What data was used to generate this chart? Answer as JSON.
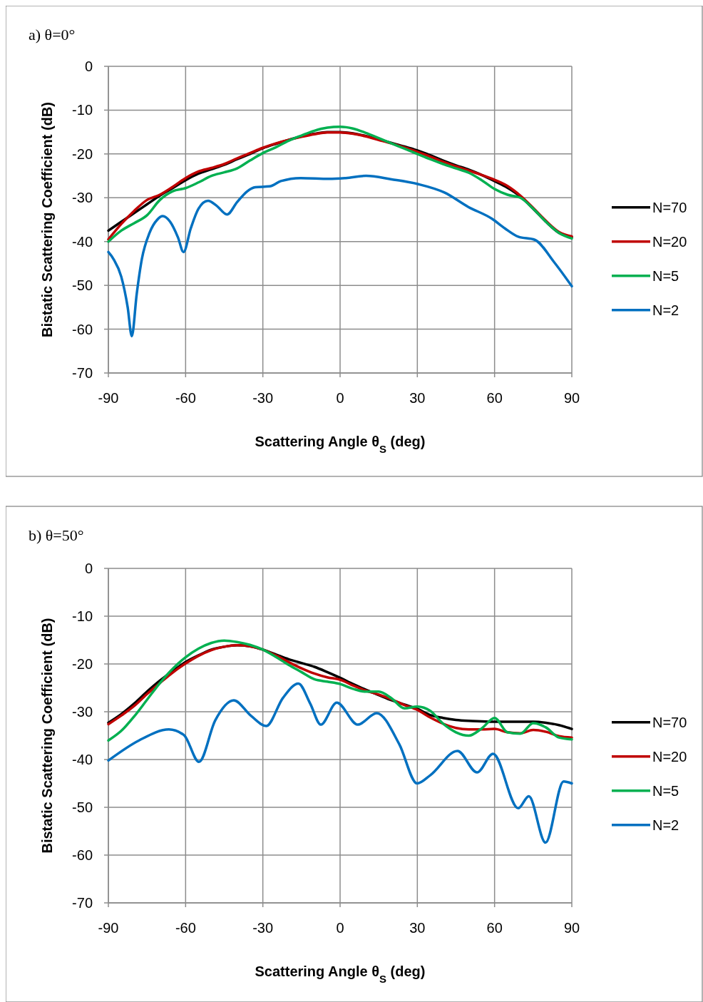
{
  "chart_data": [
    {
      "type": "line",
      "title": "a) θ=0°",
      "xlabel": "Scattering Angle θ$_{S}$ (deg)",
      "ylabel": "Bistatic Scattering Coefficient (dB)",
      "xlim": [
        -90,
        90
      ],
      "xticks": [
        -90,
        -60,
        -30,
        0,
        30,
        60,
        90
      ],
      "ylim": [
        -70,
        0
      ],
      "yticks": [
        -70,
        -60,
        -50,
        -40,
        -30,
        -20,
        -10,
        0
      ],
      "grid": true,
      "legend": "right",
      "marker": "none",
      "line_style": "solid",
      "x": [
        -90,
        -85,
        -80,
        -75,
        -70,
        -65,
        -60,
        -55,
        -50,
        -45,
        -40,
        -35,
        -30,
        -25,
        -20,
        -15,
        -10,
        -5,
        0,
        5,
        10,
        15,
        20,
        25,
        30,
        35,
        40,
        45,
        50,
        55,
        60,
        65,
        70,
        75,
        80,
        85,
        90
      ],
      "series": [
        {
          "name": "N=70",
          "color": "#000000",
          "values": [
            -37.5,
            -35.5,
            -33.5,
            -31.5,
            -29.5,
            -27.8,
            -26,
            -24.5,
            -23.5,
            -22.5,
            -21.2,
            -20,
            -18.7,
            -17.7,
            -16.8,
            -16,
            -15.4,
            -15,
            -15,
            -15.3,
            -15.9,
            -16.7,
            -17.5,
            -18.3,
            -19.2,
            -20.3,
            -21.5,
            -22.6,
            -23.6,
            -24.8,
            -26.2,
            -27.7,
            -29.7,
            -32.5,
            -35.5,
            -38,
            -39
          ]
        },
        {
          "name": "N=20",
          "color": "#c00000",
          "values": [
            -39.5,
            -36,
            -33,
            -30.5,
            -29.3,
            -27.5,
            -25.5,
            -24,
            -23.2,
            -22.3,
            -21,
            -19.8,
            -18.6,
            -17.6,
            -16.8,
            -16.1,
            -15.5,
            -15.1,
            -15.1,
            -15.4,
            -16,
            -16.8,
            -17.6,
            -18.5,
            -19.5,
            -20.6,
            -21.8,
            -22.8,
            -23.8,
            -24.8,
            -25.9,
            -27.3,
            -29.5,
            -32.3,
            -35.3,
            -37.8,
            -38.8
          ]
        },
        {
          "name": "N=5",
          "color": "#00b050",
          "values": [
            -40,
            -37.5,
            -35.8,
            -34,
            -30.5,
            -28.5,
            -27.8,
            -26.5,
            -25,
            -24.2,
            -23.3,
            -21.5,
            -19.8,
            -18.5,
            -17,
            -15.8,
            -14.7,
            -14,
            -13.8,
            -14.2,
            -15.2,
            -16.4,
            -17.6,
            -18.8,
            -20,
            -21.2,
            -22.3,
            -23.3,
            -24.3,
            -26,
            -28,
            -29.3,
            -30,
            -32.5,
            -35.5,
            -38,
            -39.3
          ]
        },
        {
          "name": "N=2",
          "color": "#0070c0",
          "x": [
            -90,
            -88,
            -85,
            -82.5,
            -80.9,
            -79,
            -77,
            -74,
            -71,
            -68.9,
            -66,
            -63,
            -60.8,
            -58,
            -55,
            -51.3,
            -48,
            -43.9,
            -40,
            -36,
            -32.9,
            -27.4,
            -23,
            -15.3,
            -4.2,
            2.2,
            10.1,
            20,
            30.4,
            40.5,
            49.8,
            59,
            64,
            69.2,
            75.6,
            83,
            90
          ],
          "values": [
            -42.4,
            -44,
            -48,
            -55,
            -61.6,
            -52,
            -44,
            -38,
            -35,
            -34.2,
            -35.5,
            -39,
            -42.4,
            -37,
            -32.5,
            -30.7,
            -31.8,
            -33.8,
            -31,
            -28.5,
            -27.6,
            -27.4,
            -26.2,
            -25.5,
            -25.7,
            -25.5,
            -25,
            -25.8,
            -26.9,
            -28.8,
            -32.1,
            -34.8,
            -37,
            -38.9,
            -39.6,
            -44.6,
            -50.2
          ]
        }
      ]
    },
    {
      "type": "line",
      "title": "b) θ=50°",
      "xlabel": "Scattering Angle θ$_{S}$ (deg)",
      "ylabel": "Bistatic Scattering Coefficient (dB)",
      "xlim": [
        -90,
        90
      ],
      "xticks": [
        -90,
        -60,
        -30,
        0,
        30,
        60,
        90
      ],
      "ylim": [
        -70,
        0
      ],
      "yticks": [
        -70,
        -60,
        -50,
        -40,
        -30,
        -20,
        -10,
        0
      ],
      "grid": true,
      "legend": "right",
      "marker": "none",
      "line_style": "solid",
      "x": [
        -90,
        -85,
        -80,
        -75,
        -70,
        -65,
        -60,
        -55,
        -50,
        -45,
        -40,
        -35,
        -30,
        -25,
        -20,
        -15,
        -10,
        -5,
        0,
        5,
        10,
        15,
        20,
        25,
        30,
        35,
        40,
        45,
        50,
        55,
        60,
        65,
        70,
        75,
        80,
        85,
        90
      ],
      "series": [
        {
          "name": "N=70",
          "color": "#000000",
          "values": [
            -32.3,
            -30.5,
            -28.3,
            -25.8,
            -23.5,
            -21.5,
            -19.6,
            -18.2,
            -17,
            -16.4,
            -16.1,
            -16.3,
            -17,
            -18,
            -19,
            -19.8,
            -20.6,
            -21.7,
            -22.9,
            -24.2,
            -25.4,
            -26.5,
            -27.6,
            -28.5,
            -29.4,
            -30.7,
            -31.3,
            -31.7,
            -31.9,
            -32,
            -32.1,
            -32.1,
            -32.1,
            -32.1,
            -32.3,
            -32.8,
            -33.6
          ]
        },
        {
          "name": "N=20",
          "color": "#c00000",
          "values": [
            -32.6,
            -30.8,
            -28.8,
            -26.3,
            -24,
            -21.8,
            -19.9,
            -18.3,
            -17.1,
            -16.4,
            -16.1,
            -16.3,
            -17,
            -18.2,
            -19.6,
            -20.9,
            -22,
            -22.8,
            -23.3,
            -24.5,
            -25.6,
            -26.4,
            -27.4,
            -28.6,
            -29.6,
            -31.2,
            -32.5,
            -33.4,
            -33.7,
            -33.7,
            -33.6,
            -34.3,
            -34.5,
            -33.8,
            -34.2,
            -35.1,
            -35.4
          ]
        },
        {
          "name": "N=5",
          "color": "#00b050",
          "values": [
            -36,
            -34,
            -31,
            -27.5,
            -24,
            -21,
            -18.6,
            -16.8,
            -15.6,
            -15.1,
            -15.4,
            -16,
            -17,
            -18.5,
            -20.2,
            -21.7,
            -23.2,
            -23.7,
            -24.2,
            -25.2,
            -25.8,
            -25.8,
            -27.2,
            -29.3,
            -28.9,
            -29.8,
            -32.5,
            -34.3,
            -35,
            -33.5,
            -31.3,
            -34.3,
            -34.6,
            -32.4,
            -33.3,
            -35.4,
            -35.8
          ]
        },
        {
          "name": "N=2",
          "color": "#0070c0",
          "x": [
            -90,
            -78.1,
            -66.5,
            -60.6,
            -54.8,
            -48.5,
            -41.3,
            -34.7,
            -28.7,
            -22.2,
            -16.2,
            -11.6,
            -7.5,
            -1.3,
            6.9,
            14.2,
            23,
            29.9,
            35,
            45.6,
            53.2,
            59.4,
            69.2,
            73.3,
            79.8,
            86.8,
            90
          ],
          "values": [
            -40.2,
            -36,
            -33.7,
            -34.9,
            -40.5,
            -31.8,
            -27.6,
            -30.8,
            -33,
            -27.1,
            -24.1,
            -28.3,
            -32.7,
            -28.1,
            -32.7,
            -30.3,
            -36.8,
            -45,
            -43.3,
            -38.2,
            -42.7,
            -38.8,
            -50.2,
            -47.7,
            -57.4,
            -44.6,
            -45
          ]
        }
      ]
    }
  ]
}
